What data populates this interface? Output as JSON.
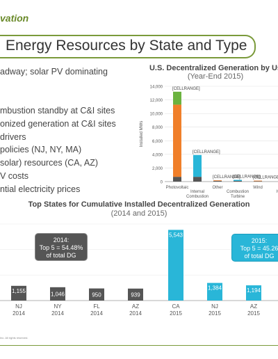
{
  "header": {
    "tagline": "vation"
  },
  "page_title": "Energy Resources by State and Type",
  "bullets": [
    "adway; solar PV dominating",
    "mbustion standby at C&I sites",
    "onized generation at C&I sites",
    "drivers",
    "policies (NJ, NY, MA)",
    "solar) resources (CA, AZ)",
    "V costs",
    "ntial electricity prices"
  ],
  "footer": {
    "copyright": "Inc. All rights reserved."
  },
  "colors": {
    "photovoltaic_green": "#6bb33f",
    "photovoltaic_orange": "#f07f2a",
    "base_dark": "#555555",
    "teal": "#29b6d8",
    "accent_olive": "#7a9a3a"
  },
  "chart_data": [
    {
      "type": "bar",
      "stacked": true,
      "title": "U.S. Decentralized Generation by Us",
      "subtitle": "(Year-End 2015)",
      "ylabel": "Installed MWs",
      "ylim": [
        0,
        14000
      ],
      "y_ticks": [
        "0",
        "2,000",
        "4,000",
        "6,000",
        "8,000",
        "10,000",
        "12,000",
        "14,000"
      ],
      "categories": [
        "Photovoltaic",
        "Internal Combustion",
        "Other",
        "Combustion Turbine",
        "Wind",
        "H"
      ],
      "category_lines": [
        [
          "Photovoltaic"
        ],
        [
          "Internal",
          "Combustion"
        ],
        [
          "Other"
        ],
        [
          "Combustion",
          "Turbine"
        ],
        [
          "Wind"
        ],
        [
          "H"
        ]
      ],
      "data_labels": [
        "[CELLRANGE]",
        "[CELLRANGE]",
        "[CELLRANGE]",
        "[CELLRANGE]",
        "[CELLRANGE]",
        ""
      ],
      "series": [
        {
          "color": "#555555",
          "values": [
            700,
            700,
            100,
            100,
            60,
            0
          ]
        },
        {
          "color": "#f07f2a",
          "values": [
            10600,
            0,
            80,
            0,
            80,
            0
          ]
        },
        {
          "color": "#29b6d8",
          "values": [
            0,
            3200,
            0,
            150,
            0,
            0
          ]
        },
        {
          "color": "#6bb33f",
          "values": [
            1900,
            0,
            0,
            0,
            0,
            0
          ]
        }
      ]
    },
    {
      "type": "bar",
      "title": "Top States for Cumulative Installed Decentralized Generation",
      "subtitle": "(2014 and 2015)",
      "ylim": [
        0,
        6000
      ],
      "categories": [
        {
          "state": "NJ",
          "year": "2014"
        },
        {
          "state": "NY",
          "year": "2014"
        },
        {
          "state": "FL",
          "year": "2014"
        },
        {
          "state": "AZ",
          "year": "2014"
        },
        {
          "state": "CA",
          "year": "2015"
        },
        {
          "state": "NJ",
          "year": "2015"
        },
        {
          "state": "AZ",
          "year": "2015"
        }
      ],
      "values": [
        1155,
        1046,
        950,
        939,
        5543,
        1384,
        1194
      ],
      "value_labels": [
        "1,155",
        "1,046",
        "950",
        "939",
        "5,543",
        "1,384",
        "1,194"
      ],
      "colors": [
        "#555555",
        "#555555",
        "#555555",
        "#555555",
        "#29b6d8",
        "#29b6d8",
        "#29b6d8"
      ],
      "callouts": [
        {
          "line1": "2014:",
          "line2": "Top 5 = 54.48%",
          "line3": "of total DG"
        },
        {
          "line1": "2015:",
          "line2": "Top 5 = 45.26",
          "line3": "of total DG"
        }
      ]
    }
  ]
}
